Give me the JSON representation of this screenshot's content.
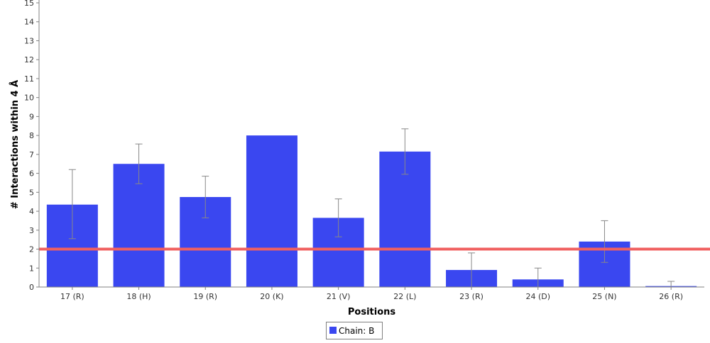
{
  "chart_data": {
    "type": "bar",
    "xlabel": "Positions",
    "ylabel": "# Interactions within 4 Å",
    "ylim": [
      0,
      15
    ],
    "yticks": [
      0,
      1,
      2,
      3,
      4,
      5,
      6,
      7,
      8,
      9,
      10,
      11,
      12,
      13,
      14,
      15
    ],
    "categories": [
      "17 (R)",
      "18 (H)",
      "19 (R)",
      "20 (K)",
      "21 (V)",
      "22 (L)",
      "23 (R)",
      "24 (D)",
      "25 (N)",
      "26 (R)"
    ],
    "series": [
      {
        "name": "Chain: B",
        "color": "#3a47f0",
        "values": [
          4.35,
          6.5,
          4.75,
          8.0,
          3.65,
          7.15,
          0.9,
          0.4,
          2.4,
          0.05
        ],
        "error_low": [
          2.55,
          5.45,
          3.65,
          8.0,
          2.65,
          5.95,
          0.0,
          0.0,
          1.3,
          0.0
        ],
        "error_high": [
          6.2,
          7.55,
          5.85,
          8.0,
          4.65,
          8.35,
          1.8,
          1.0,
          3.5,
          0.3
        ]
      }
    ],
    "reference_line": {
      "y": 2,
      "color": "#f06060"
    },
    "grid": false,
    "legend": {
      "position": "bottom-center",
      "label": "Chain: B"
    }
  }
}
